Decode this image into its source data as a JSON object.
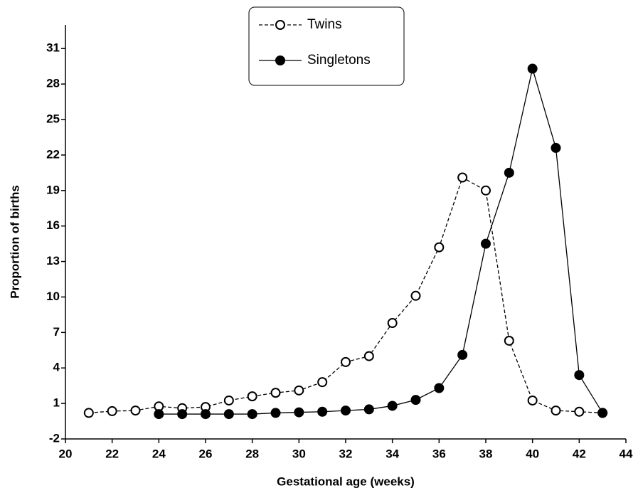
{
  "chart_data": {
    "type": "line",
    "x_label": "Gestational age (weeks)",
    "y_label": "Proportion of births",
    "xlim": [
      20,
      44
    ],
    "xticks": [
      20,
      22,
      24,
      26,
      28,
      30,
      32,
      34,
      36,
      38,
      40,
      42,
      44
    ],
    "ylim": [
      -2,
      33
    ],
    "yticks": [
      -2,
      1,
      4,
      7,
      10,
      13,
      16,
      19,
      22,
      25,
      28,
      31
    ],
    "legend": "top-center",
    "series": [
      {
        "name": "Twins",
        "color": "#000000",
        "linestyle": "dashed",
        "marker": "open",
        "x": [
          21,
          22,
          23,
          24,
          25,
          26,
          27,
          28,
          29,
          30,
          31,
          32,
          33,
          34,
          35,
          36,
          37,
          38,
          39,
          40,
          41,
          42,
          43
        ],
        "values": [
          0.2,
          0.35,
          0.4,
          0.75,
          0.6,
          0.7,
          1.25,
          1.6,
          1.9,
          2.1,
          2.8,
          4.5,
          5.0,
          7.8,
          10.1,
          14.2,
          20.1,
          19.0,
          6.3,
          1.25,
          0.4,
          0.3,
          0.2
        ]
      },
      {
        "name": "Singletons",
        "color": "#000000",
        "linestyle": "solid",
        "marker": "filled",
        "x": [
          24,
          25,
          26,
          27,
          28,
          29,
          30,
          31,
          32,
          33,
          34,
          35,
          36,
          37,
          38,
          39,
          40,
          41,
          42,
          43
        ],
        "values": [
          0.1,
          0.1,
          0.1,
          0.1,
          0.1,
          0.2,
          0.25,
          0.3,
          0.4,
          0.5,
          0.8,
          1.3,
          2.3,
          5.1,
          14.5,
          20.5,
          29.3,
          22.6,
          3.4,
          0.2
        ]
      }
    ]
  }
}
